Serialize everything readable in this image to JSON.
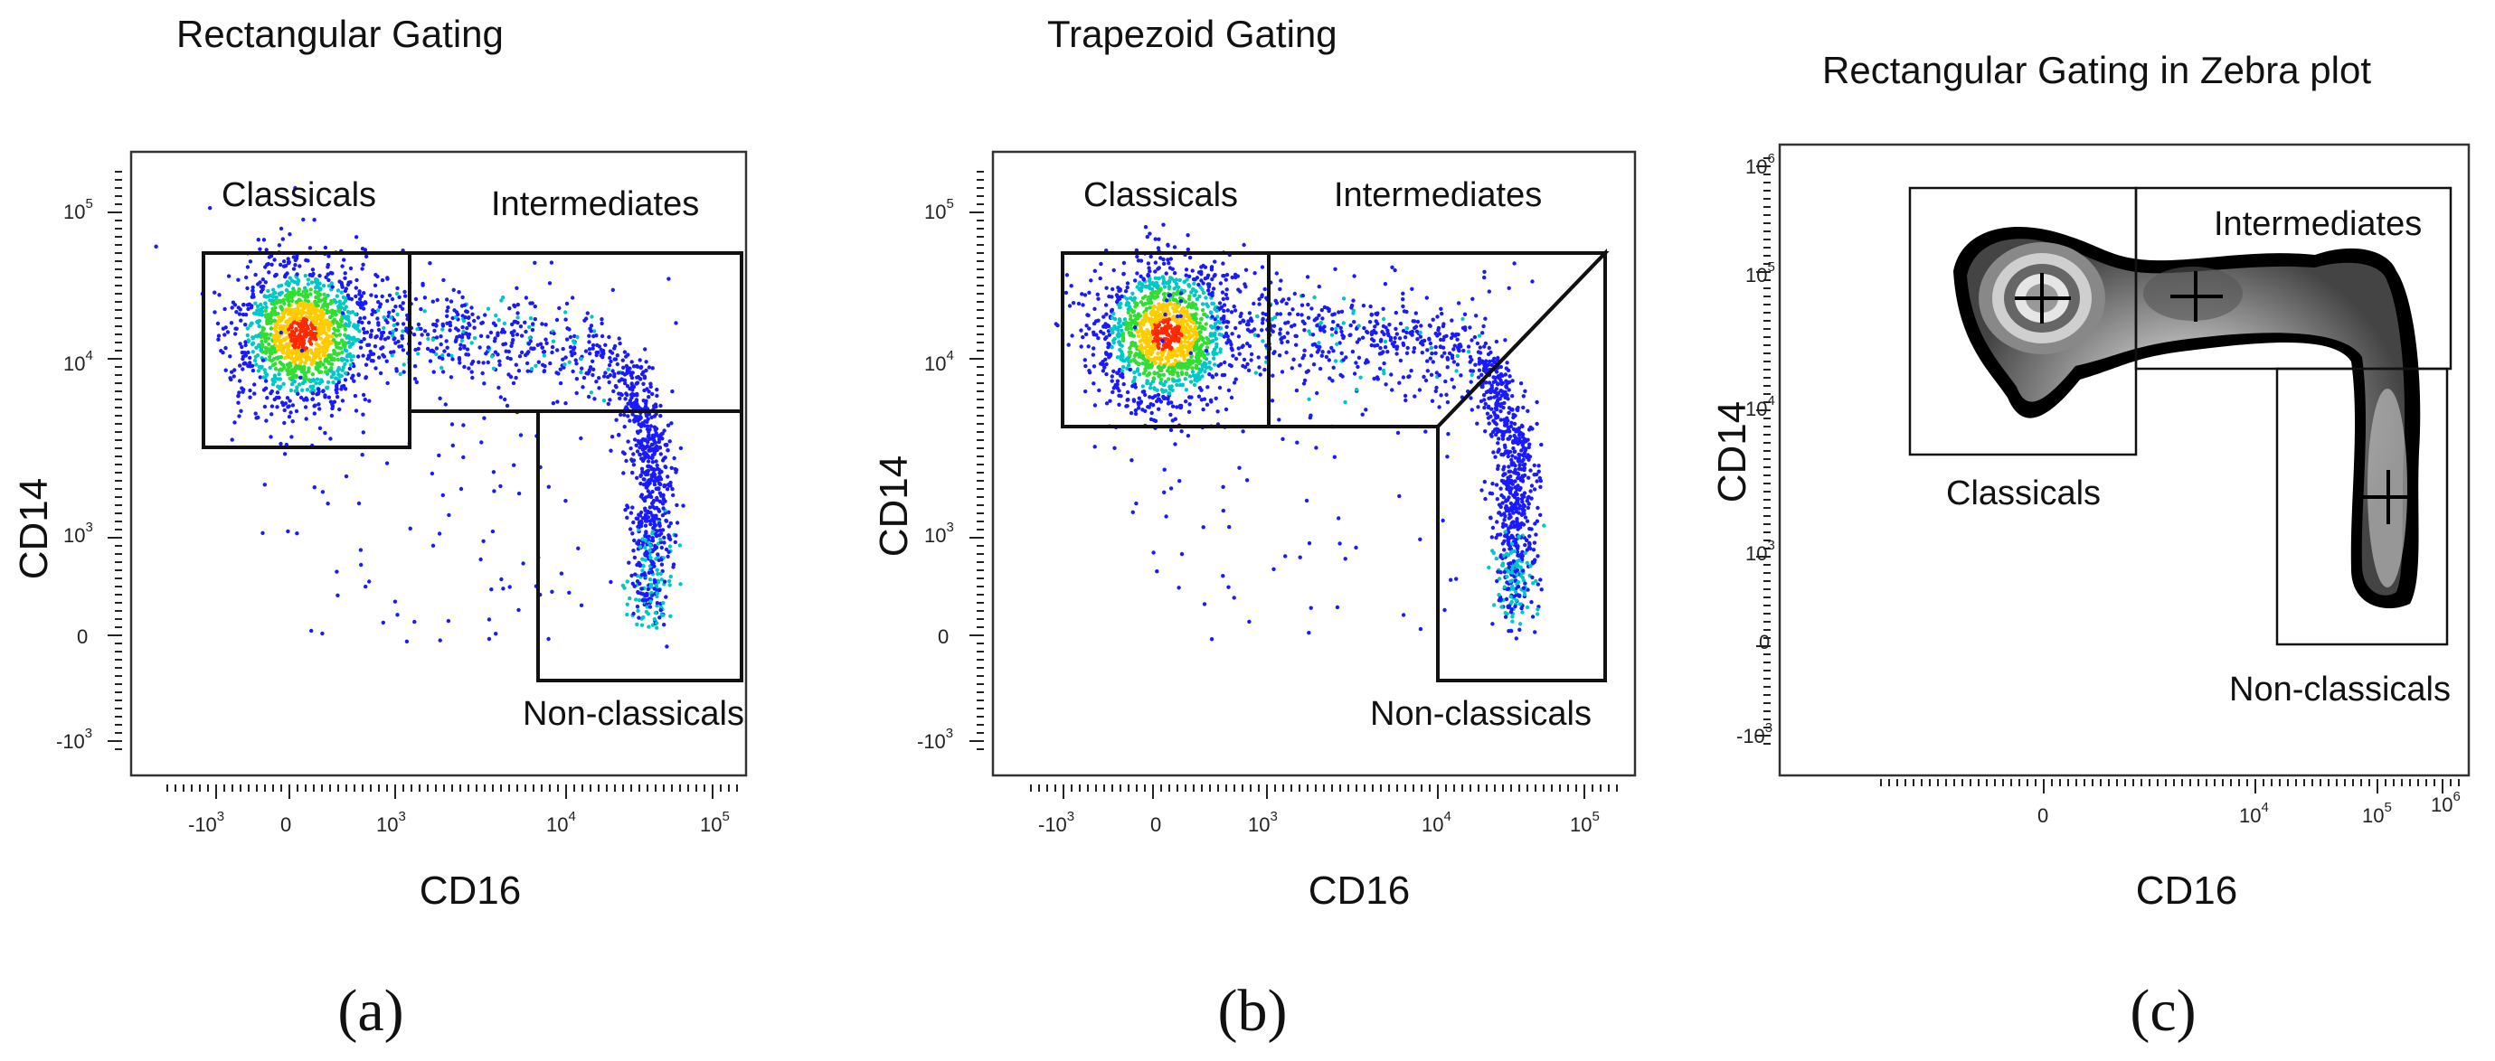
{
  "chart_data": [
    {
      "type": "scatter",
      "panel": "(a)",
      "title": "Rectangular Gating",
      "xlabel": "CD16",
      "ylabel": "CD14",
      "x_ticks": [
        "-10^3",
        "0",
        "10^3",
        "10^4",
        "10^5"
      ],
      "y_ticks": [
        "10^5",
        "10^4",
        "10^3",
        "0",
        "-10^3"
      ],
      "gates": [
        {
          "name": "Classicals",
          "shape": "rectangle"
        },
        {
          "name": "Intermediates",
          "shape": "rectangle"
        },
        {
          "name": "Non-classicals",
          "shape": "rectangle"
        }
      ]
    },
    {
      "type": "scatter",
      "panel": "(b)",
      "title": "Trapezoid Gating",
      "xlabel": "CD16",
      "ylabel": "CD14",
      "x_ticks": [
        "-10^3",
        "0",
        "10^3",
        "10^4",
        "10^5"
      ],
      "y_ticks": [
        "10^5",
        "10^4",
        "10^3",
        "0",
        "-10^3"
      ],
      "gates": [
        {
          "name": "Classicals",
          "shape": "rectangle"
        },
        {
          "name": "Intermediates",
          "shape": "trapezoid"
        },
        {
          "name": "Non-classicals",
          "shape": "trapezoid"
        }
      ]
    },
    {
      "type": "contour",
      "panel": "(c)",
      "title": "Rectangular Gating in Zebra plot",
      "xlabel": "CD16",
      "ylabel": "CD14",
      "x_ticks": [
        "0",
        "10^4",
        "10^5",
        "10^6"
      ],
      "y_ticks": [
        "10^6",
        "10^5",
        "10^4",
        "10^3",
        "0",
        "-10^3"
      ],
      "gates": [
        {
          "name": "Classicals",
          "shape": "rectangle"
        },
        {
          "name": "Intermediates",
          "shape": "rectangle"
        },
        {
          "name": "Non-classicals",
          "shape": "rectangle"
        }
      ]
    }
  ],
  "labels": {
    "a": {
      "title": "Rectangular Gating",
      "xlabel": "CD16",
      "ylabel": "CD14",
      "panel": "(a)",
      "classicals": "Classicals",
      "intermediates": "Intermediates",
      "nonclassicals": "Non-classicals"
    },
    "b": {
      "title": "Trapezoid Gating",
      "xlabel": "CD16",
      "ylabel": "CD14",
      "panel": "(b)",
      "classicals": "Classicals",
      "intermediates": "Intermediates",
      "nonclassicals": "Non-classicals"
    },
    "c": {
      "title": "Rectangular Gating in Zebra plot",
      "xlabel": "CD16",
      "ylabel": "CD14",
      "panel": "(c)",
      "classicals": "Classicals",
      "intermediates": "Intermediates",
      "nonclassicals": "Non-classicals"
    }
  },
  "colors": {
    "scatter_low": "#1a1aff",
    "scatter_mid": "#00c8c8",
    "scatter_high": "#ff2a00",
    "zebra_dark": "#111111",
    "zebra_light": "#f2f2f2"
  }
}
